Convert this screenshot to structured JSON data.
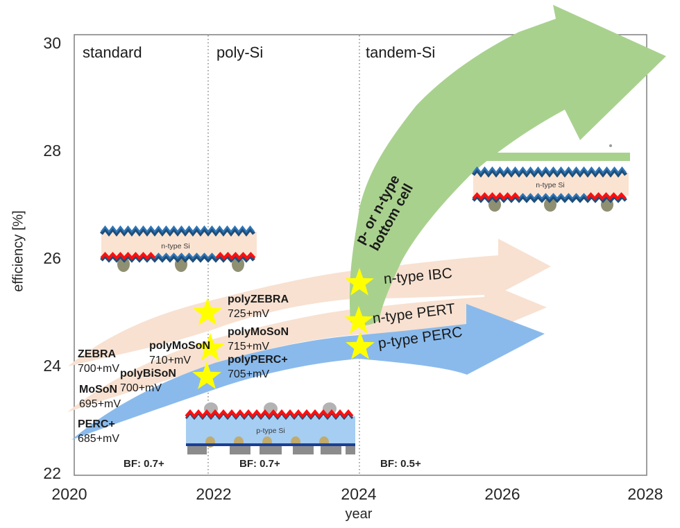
{
  "colors": {
    "peach": "#f8e1d1",
    "blue": "#8abaec",
    "green": "#a9d18e",
    "star": "#ffff00",
    "axis_gray": "#7f7f7f",
    "schematic_peach_body": "#fbe3d2",
    "schematic_blue_body": "#a6cdf2",
    "zigzag_red": "#fb0f0f",
    "zigzag_navy": "#1f4e79",
    "zigzag_blue": "#2e75b6"
  },
  "figure": {
    "y_axis": {
      "label": "efficiency [%]",
      "ticks": [
        "30",
        "28",
        "26",
        "24",
        "22"
      ]
    },
    "x_axis": {
      "label": "year",
      "ticks": [
        "2020",
        "2022",
        "2024",
        "2026",
        "2028"
      ]
    },
    "phases": {
      "standard": "standard",
      "poly": "poly-Si",
      "tandem": "tandem-Si"
    },
    "bf": {
      "standard": "BF: 0.7+",
      "poly": "BF: 0.7+",
      "tandem": "BF: 0.5+"
    },
    "arrows": {
      "ibc": "n-type IBC",
      "pert": "n-type PERT",
      "perc": "p-type PERC",
      "tandem_line1": "p- or n-type",
      "tandem_line2": "bottom cell"
    },
    "milestones": {
      "zebra": {
        "name": "ZEBRA",
        "voc": "700+mV"
      },
      "moson": {
        "name": "MoSoN",
        "voc": "695+mV"
      },
      "percplus": {
        "name": "PERC+",
        "voc": "685+mV"
      },
      "polybison": {
        "name": "polyBiSoN",
        "voc": "700+mV"
      },
      "polymoson_now": {
        "name": "polyMoSoN",
        "voc": "710+mV"
      },
      "polyzebra": {
        "name": "polyZEBRA",
        "voc": "725+mV"
      },
      "polymoson_next": {
        "name": "polyMoSoN",
        "voc": "715+mV"
      },
      "polypercplus": {
        "name": "polyPERC+",
        "voc": "705+mV"
      }
    },
    "schematics": {
      "ibc_label": "n-type Si",
      "tandem_label": "n-type Si",
      "perc_label": "p-type Si"
    }
  },
  "chart_data": {
    "type": "area",
    "title": "Crystalline silicon solar cell efficiency technology roadmap",
    "xlabel": "year",
    "ylabel": "efficiency [%]",
    "xlim": [
      2020,
      2028
    ],
    "ylim": [
      22,
      30
    ],
    "x_ticks": [
      2020,
      2022,
      2024,
      2026,
      2028
    ],
    "y_ticks": [
      22,
      24,
      26,
      28,
      30
    ],
    "grid": false,
    "legend_position": "none",
    "phases": [
      {
        "label": "standard",
        "from": 2020,
        "to": 2022,
        "bifaciality": "BF: 0.7+"
      },
      {
        "label": "poly-Si",
        "from": 2022,
        "to": 2024,
        "bifaciality": "BF: 0.7+"
      },
      {
        "label": "tandem-Si",
        "from": 2024,
        "to": 2028,
        "bifaciality": "BF: 0.5+"
      }
    ],
    "series": [
      {
        "name": "n-type IBC",
        "shape": "curved block arrow",
        "color": "#f8e1d1",
        "x": [
          2020,
          2022,
          2024,
          2026.7
        ],
        "efficiency": [
          24.0,
          25.0,
          25.5,
          25.8
        ]
      },
      {
        "name": "n-type PERT",
        "shape": "curved block arrow",
        "color": "#f8e1d1",
        "x": [
          2020,
          2022,
          2024,
          2026.6
        ],
        "efficiency": [
          23.1,
          24.3,
          24.8,
          25.1
        ]
      },
      {
        "name": "p-type PERC",
        "shape": "curved block arrow",
        "color": "#8abaec",
        "x": [
          2020,
          2022,
          2024,
          2026.6
        ],
        "efficiency": [
          22.6,
          23.8,
          24.35,
          24.6
        ]
      },
      {
        "name": "p- or n-type bottom cell",
        "shape": "curved block arrow rising to tandem",
        "color": "#a9d18e",
        "x": [
          2024,
          2025,
          2026,
          2027.3
        ],
        "efficiency": [
          24.9,
          26.9,
          28.9,
          30.2
        ]
      }
    ],
    "milestones": [
      {
        "label": "ZEBRA",
        "voc": "700+mV",
        "year": 2020.2,
        "efficiency": 24.0,
        "star": false
      },
      {
        "label": "MoSoN",
        "voc": "695+mV",
        "year": 2020.2,
        "efficiency": 23.3,
        "star": false
      },
      {
        "label": "PERC+",
        "voc": "685+mV",
        "year": 2020.2,
        "efficiency": 22.8,
        "star": false
      },
      {
        "label": "polyMoSoN",
        "voc": "710+mV",
        "year": 2021.2,
        "efficiency": 24.2,
        "star": false
      },
      {
        "label": "polyBiSoN",
        "voc": "700+mV",
        "year": 2020.9,
        "efficiency": 23.8,
        "star": false
      },
      {
        "label": "polyZEBRA",
        "voc": "725+mV",
        "year": 2022,
        "efficiency": 25.0,
        "star": true
      },
      {
        "label": "polyMoSoN",
        "voc": "715+mV",
        "year": 2022,
        "efficiency": 24.3,
        "star": true
      },
      {
        "label": "polyPERC+",
        "voc": "705+mV",
        "year": 2022,
        "efficiency": 23.8,
        "star": true
      },
      {
        "label": "n-type IBC",
        "voc": "",
        "year": 2024,
        "efficiency": 25.5,
        "star": true
      },
      {
        "label": "n-type PERT",
        "voc": "",
        "year": 2024,
        "efficiency": 24.85,
        "star": true
      },
      {
        "label": "p-type PERC",
        "voc": "",
        "year": 2024,
        "efficiency": 24.35,
        "star": true
      }
    ],
    "annotations": [
      {
        "text": "p- or n-type bottom cell",
        "on": "green tandem arrow",
        "rotation_deg": -61
      },
      {
        "text": "n-type Si",
        "type": "cell cross-section schematic",
        "x": 2020.4,
        "efficiency": 26.2
      },
      {
        "text": "n-type Si",
        "type": "tandem cell cross-section schematic with green top-cell bar",
        "x": 2025.6,
        "efficiency": 27.6
      },
      {
        "text": "p-type Si",
        "type": "PERC cell cross-section schematic",
        "x": 2021.6,
        "efficiency": 22.8
      }
    ]
  }
}
